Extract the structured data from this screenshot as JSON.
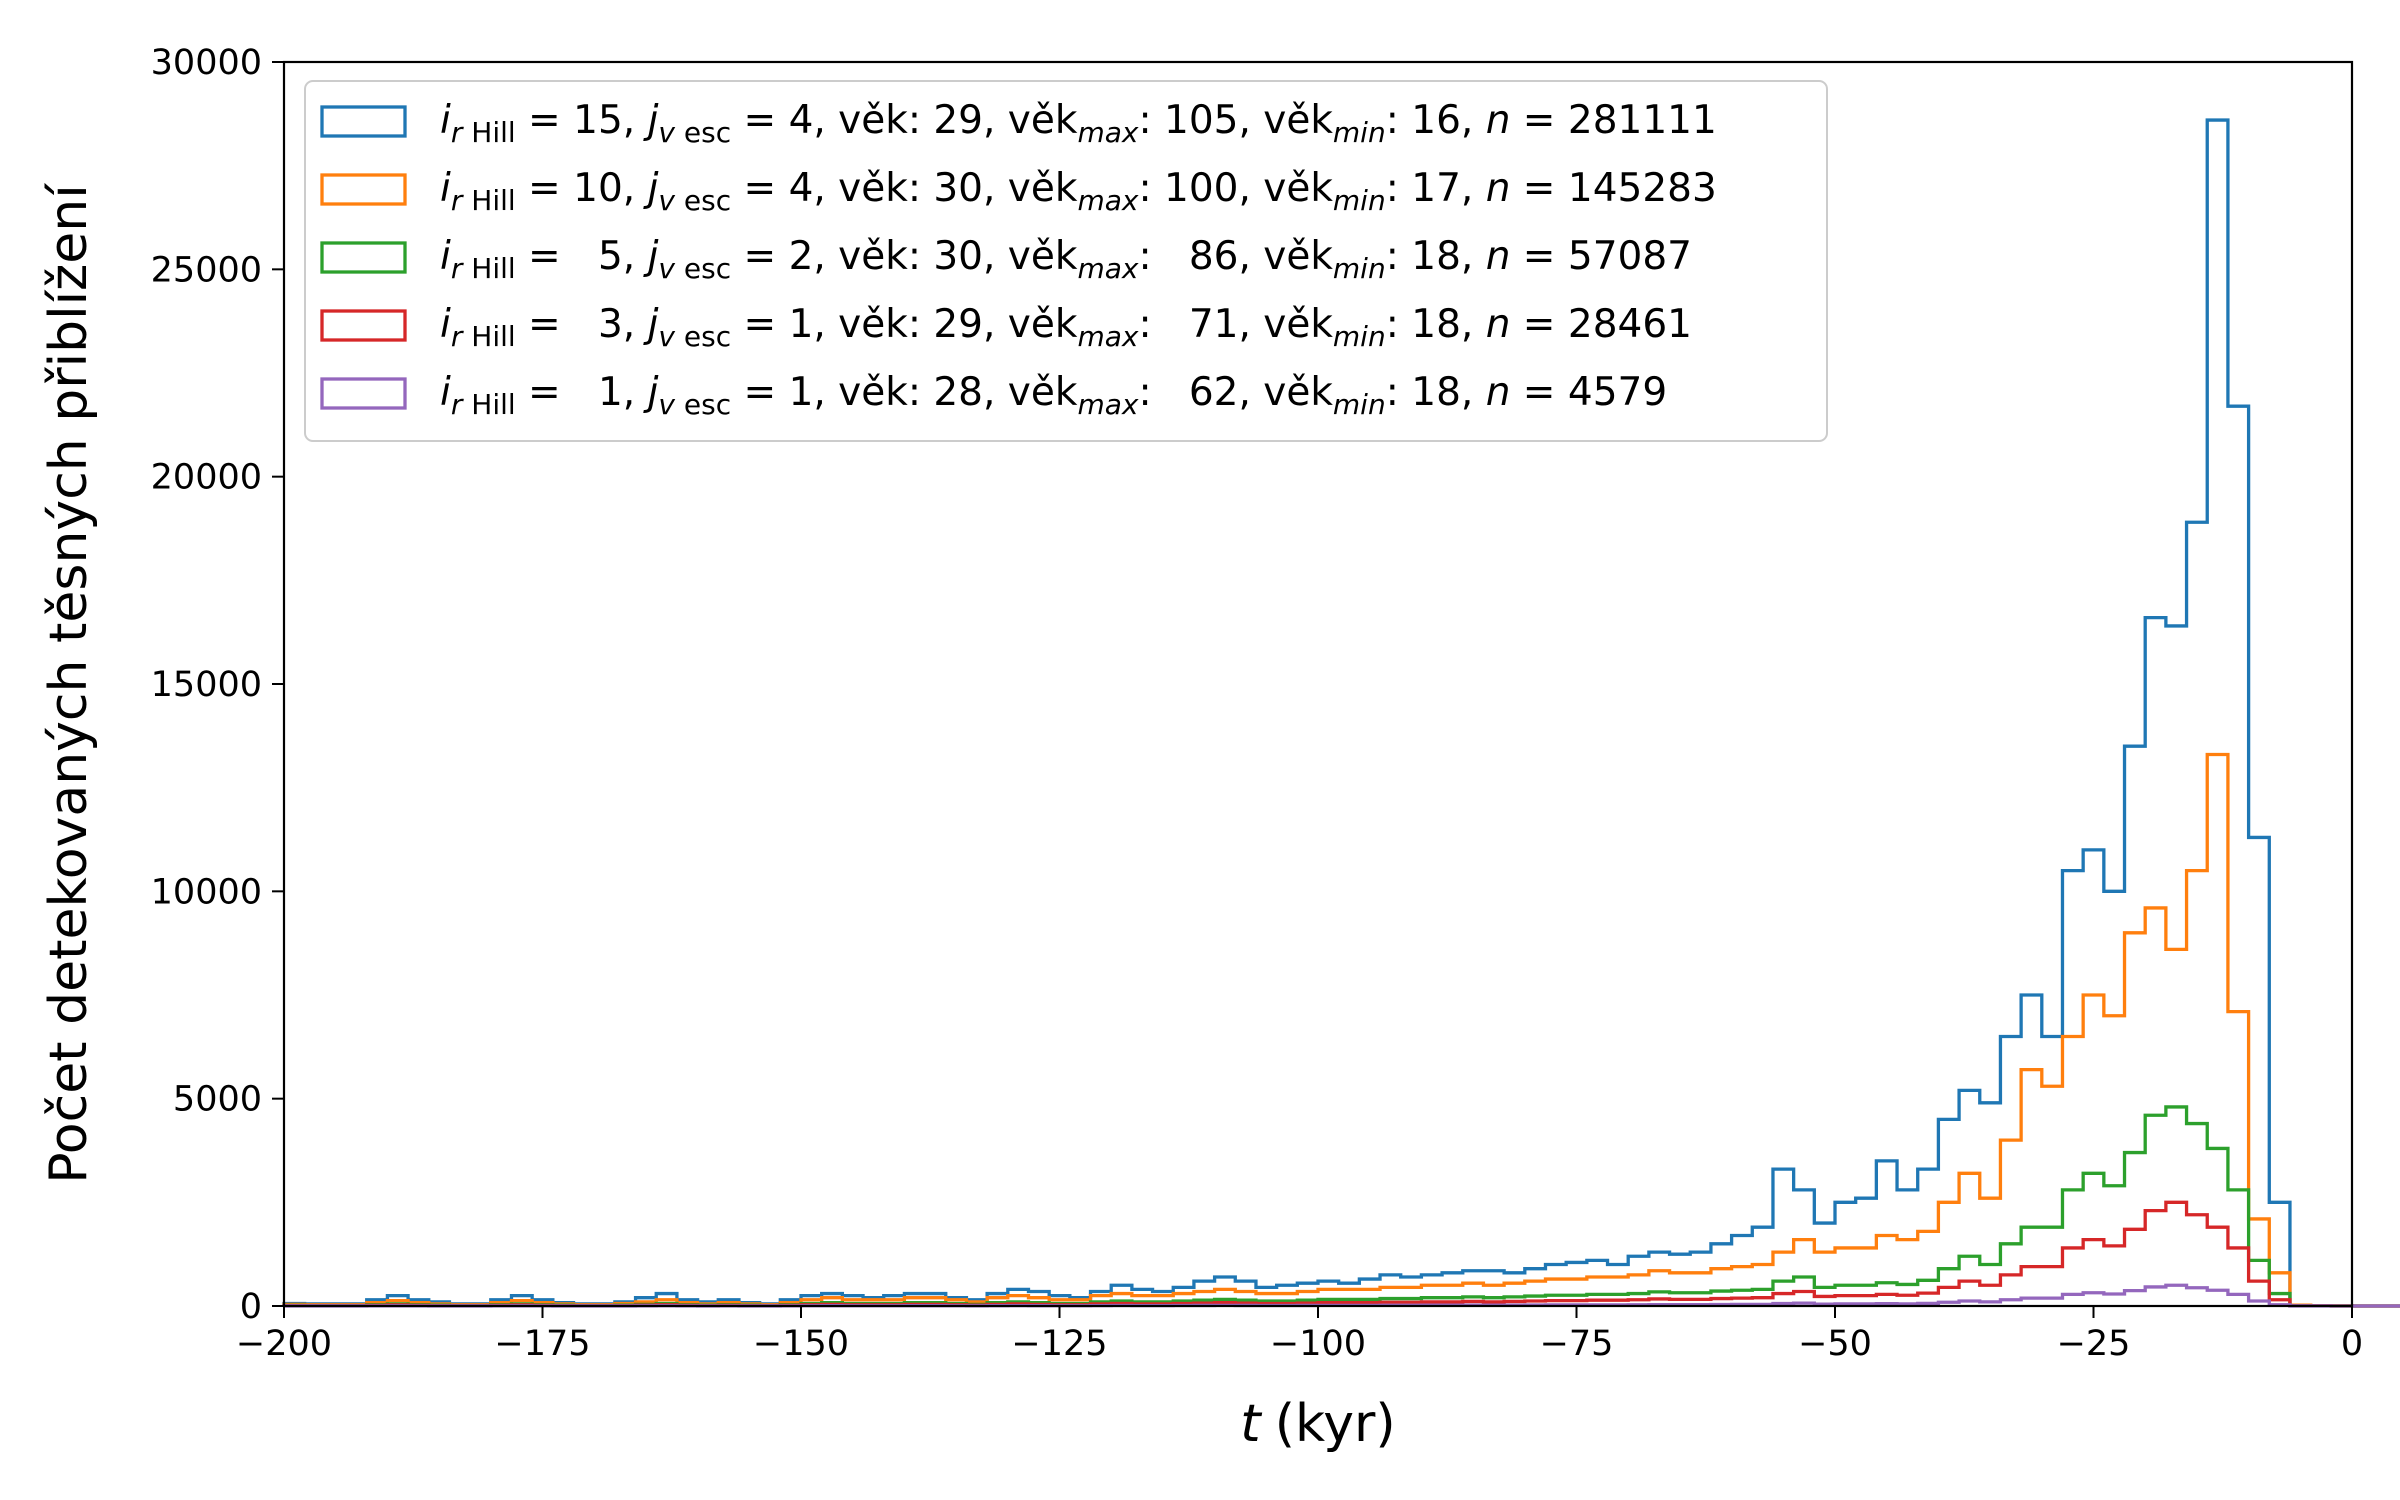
{
  "chart_data": {
    "type": "histogram",
    "xlabel_var": "t",
    "xlabel_unit": "(kyr)",
    "ylabel": "Počet detekovaných těsných přiblížení",
    "xlim": [
      -200,
      0
    ],
    "ylim": [
      0,
      30000
    ],
    "xticks": [
      -200,
      -175,
      -150,
      -125,
      -100,
      -75,
      -50,
      -25,
      0
    ],
    "xtick_labels": [
      "−200",
      "−175",
      "−150",
      "−125",
      "−100",
      "−75",
      "−50",
      "−25",
      "0"
    ],
    "yticks": [
      0,
      5000,
      10000,
      15000,
      20000,
      25000,
      30000
    ],
    "ytick_labels": [
      "0",
      "5000",
      "10000",
      "15000",
      "20000",
      "25000",
      "30000"
    ],
    "bin_width": 2,
    "bin_start": -200,
    "legend_position": "top-left",
    "series": [
      {
        "color": "#1f77b4",
        "legend": {
          "i_val": "15",
          "j_val": "4",
          "vek": "29",
          "vek_max": "105",
          "vek_min": "16",
          "n": "281111"
        },
        "values": [
          60,
          50,
          50,
          50,
          150,
          250,
          150,
          100,
          50,
          50,
          150,
          250,
          150,
          80,
          50,
          50,
          100,
          200,
          300,
          150,
          100,
          150,
          80,
          50,
          150,
          250,
          300,
          250,
          200,
          250,
          300,
          300,
          200,
          150,
          300,
          400,
          350,
          250,
          200,
          350,
          500,
          400,
          350,
          450,
          600,
          700,
          600,
          450,
          500,
          550,
          600,
          550,
          650,
          750,
          700,
          750,
          800,
          850,
          850,
          800,
          900,
          1000,
          1050,
          1100,
          1000,
          1200,
          1300,
          1250,
          1300,
          1500,
          1700,
          1900,
          3300,
          2800,
          2000,
          2500,
          2600,
          3500,
          2800,
          3300,
          4500,
          5200,
          4900,
          6500,
          7500,
          6500,
          10500,
          11000,
          10000,
          13500,
          16600,
          16400,
          18900,
          28600,
          21700,
          11300,
          2500,
          20,
          5,
          5,
          0,
          0,
          0,
          0,
          0
        ]
      },
      {
        "color": "#ff7f0e",
        "legend": {
          "i_val": "10",
          "j_val": "4",
          "vek": "30",
          "vek_max": "100",
          "vek_min": "17",
          "n": "145283"
        },
        "values": [
          40,
          30,
          30,
          30,
          80,
          130,
          80,
          50,
          30,
          30,
          80,
          130,
          80,
          50,
          30,
          30,
          60,
          100,
          150,
          80,
          50,
          80,
          50,
          30,
          80,
          150,
          200,
          150,
          150,
          150,
          200,
          200,
          150,
          100,
          200,
          250,
          200,
          150,
          150,
          250,
          300,
          250,
          250,
          300,
          350,
          400,
          350,
          300,
          300,
          350,
          400,
          400,
          400,
          450,
          450,
          500,
          500,
          550,
          500,
          550,
          600,
          650,
          650,
          700,
          700,
          750,
          850,
          800,
          800,
          900,
          950,
          1000,
          1300,
          1600,
          1300,
          1400,
          1400,
          1700,
          1600,
          1800,
          2500,
          3200,
          2600,
          4000,
          5700,
          5300,
          6500,
          7500,
          7000,
          9000,
          9600,
          8600,
          10500,
          13300,
          7100,
          2100,
          800,
          20,
          5,
          5,
          0,
          0,
          0,
          0,
          0
        ]
      },
      {
        "color": "#2ca02c",
        "legend": {
          "i_val": "5",
          "j_val": "2",
          "vek": "30",
          "vek_max": "86",
          "vek_min": "18",
          "n": "57087"
        },
        "values": [
          15,
          10,
          10,
          10,
          30,
          50,
          30,
          20,
          10,
          10,
          30,
          50,
          30,
          20,
          10,
          10,
          20,
          40,
          60,
          30,
          20,
          30,
          20,
          10,
          30,
          60,
          80,
          60,
          60,
          60,
          80,
          80,
          60,
          40,
          80,
          100,
          80,
          60,
          60,
          100,
          120,
          100,
          100,
          120,
          140,
          160,
          140,
          120,
          120,
          140,
          160,
          160,
          160,
          180,
          180,
          200,
          200,
          220,
          200,
          220,
          240,
          260,
          260,
          280,
          280,
          300,
          340,
          320,
          320,
          360,
          380,
          400,
          600,
          700,
          450,
          500,
          500,
          560,
          520,
          620,
          900,
          1200,
          1000,
          1500,
          1900,
          1900,
          2800,
          3200,
          2900,
          3700,
          4600,
          4800,
          4400,
          3800,
          2800,
          1100,
          300,
          10,
          5,
          0,
          0,
          0,
          0,
          0,
          0
        ]
      },
      {
        "color": "#d62728",
        "legend": {
          "i_val": "3",
          "j_val": "1",
          "vek": "29",
          "vek_max": "71",
          "vek_min": "18",
          "n": "28461"
        },
        "values": [
          8,
          5,
          5,
          5,
          15,
          25,
          15,
          10,
          5,
          5,
          15,
          25,
          15,
          10,
          5,
          5,
          10,
          20,
          30,
          15,
          10,
          15,
          10,
          5,
          15,
          30,
          40,
          30,
          30,
          30,
          40,
          40,
          30,
          20,
          40,
          50,
          40,
          30,
          30,
          50,
          60,
          50,
          50,
          60,
          70,
          80,
          70,
          60,
          60,
          70,
          80,
          80,
          80,
          90,
          90,
          100,
          100,
          110,
          100,
          110,
          120,
          130,
          130,
          140,
          140,
          150,
          170,
          160,
          160,
          180,
          190,
          200,
          300,
          350,
          230,
          250,
          250,
          280,
          260,
          310,
          450,
          600,
          500,
          750,
          950,
          950,
          1400,
          1600,
          1450,
          1850,
          2300,
          2500,
          2200,
          1900,
          1400,
          600,
          150,
          5,
          5,
          0,
          0,
          0,
          0,
          0,
          0
        ]
      },
      {
        "color": "#9467bd",
        "legend": {
          "i_val": "1",
          "j_val": "1",
          "vek": "28",
          "vek_max": "62",
          "vek_min": "18",
          "n": "4579"
        },
        "values": [
          2,
          1,
          1,
          1,
          3,
          5,
          3,
          2,
          1,
          1,
          3,
          5,
          3,
          2,
          1,
          1,
          2,
          4,
          6,
          3,
          2,
          3,
          2,
          1,
          3,
          6,
          8,
          6,
          6,
          6,
          8,
          8,
          6,
          4,
          8,
          10,
          8,
          6,
          6,
          10,
          12,
          10,
          10,
          12,
          14,
          16,
          14,
          12,
          12,
          14,
          16,
          16,
          16,
          18,
          18,
          20,
          20,
          22,
          20,
          22,
          24,
          26,
          26,
          28,
          28,
          30,
          34,
          32,
          32,
          36,
          38,
          40,
          60,
          70,
          46,
          50,
          50,
          56,
          52,
          62,
          90,
          120,
          100,
          150,
          190,
          190,
          280,
          320,
          290,
          370,
          460,
          500,
          440,
          380,
          280,
          120,
          30,
          1,
          1,
          0,
          0,
          0,
          0,
          0,
          0
        ]
      }
    ]
  }
}
